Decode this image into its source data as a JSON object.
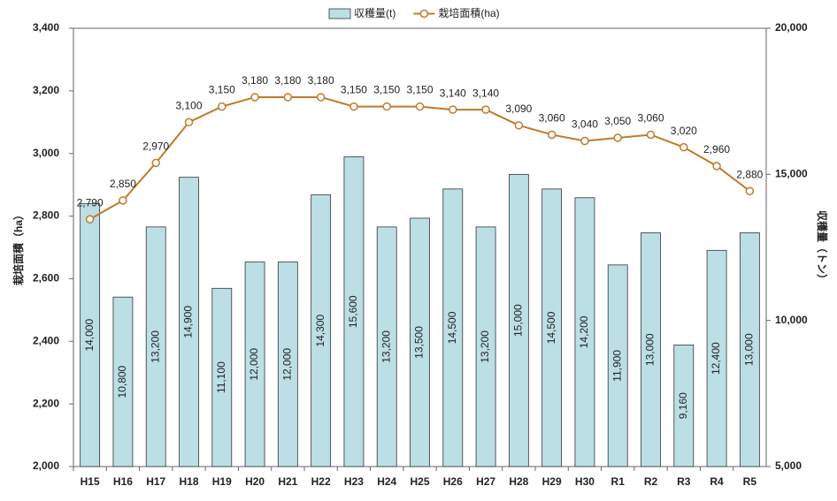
{
  "chart_data": {
    "type": "combo",
    "categories": [
      "H15",
      "H16",
      "H17",
      "H18",
      "H19",
      "H20",
      "H21",
      "H22",
      "H23",
      "H24",
      "H25",
      "H26",
      "H27",
      "H28",
      "H29",
      "H30",
      "R1",
      "R2",
      "R3",
      "R4",
      "R5"
    ],
    "series": [
      {
        "name": "収穫量(t)",
        "type": "bar",
        "axis": "y2",
        "color": "#bcdfe6",
        "values": [
          14000,
          10800,
          13200,
          14900,
          11100,
          12000,
          12000,
          14300,
          15600,
          13200,
          13500,
          14500,
          13200,
          15000,
          14500,
          14200,
          11900,
          13000,
          9160,
          12400,
          13000
        ],
        "value_labels": [
          "14,000",
          "10,800",
          "13,200",
          "14,900",
          "11,100",
          "12,000",
          "12,000",
          "14,300",
          "15,600",
          "13,200",
          "13,500",
          "14,500",
          "13,200",
          "15,000",
          "14,500",
          "14,200",
          "11,900",
          "13,000",
          "9,160",
          "12,400",
          "13,000"
        ]
      },
      {
        "name": "栽培面積(ha)",
        "type": "line",
        "axis": "y",
        "color": "#c07a2a",
        "values": [
          2790,
          2850,
          2970,
          3100,
          3150,
          3180,
          3180,
          3180,
          3150,
          3150,
          3150,
          3140,
          3140,
          3090,
          3060,
          3040,
          3050,
          3060,
          3020,
          2960,
          2880
        ],
        "value_labels": [
          "2,790",
          "2,850",
          "2,970",
          "3,100",
          "3,150",
          "3,180",
          "3,180",
          "3,180",
          "3,150",
          "3,150",
          "3,150",
          "3,140",
          "3,140",
          "3,090",
          "3,060",
          "3,040",
          "3,050",
          "3,060",
          "3,020",
          "2,960",
          "2,880"
        ]
      }
    ],
    "y_label": "栽培面積（ha）",
    "y2_label": "収穫量（トン）",
    "ylim": [
      2000,
      3400
    ],
    "yticks": [
      {
        "value": 2000,
        "label": "2,000"
      },
      {
        "value": 2200,
        "label": "2,200"
      },
      {
        "value": 2400,
        "label": "2,400"
      },
      {
        "value": 2600,
        "label": "2,600"
      },
      {
        "value": 2800,
        "label": "2,800"
      },
      {
        "value": 3000,
        "label": "3,000"
      },
      {
        "value": 3200,
        "label": "3,200"
      },
      {
        "value": 3400,
        "label": "3,400"
      }
    ],
    "y2lim": [
      5000,
      20000
    ],
    "y2ticks": [
      {
        "value": 5000,
        "label": "5,000"
      },
      {
        "value": 10000,
        "label": "10,000"
      },
      {
        "value": 15000,
        "label": "15,000"
      },
      {
        "value": 20000,
        "label": "20,000"
      }
    ],
    "legend": "top"
  }
}
